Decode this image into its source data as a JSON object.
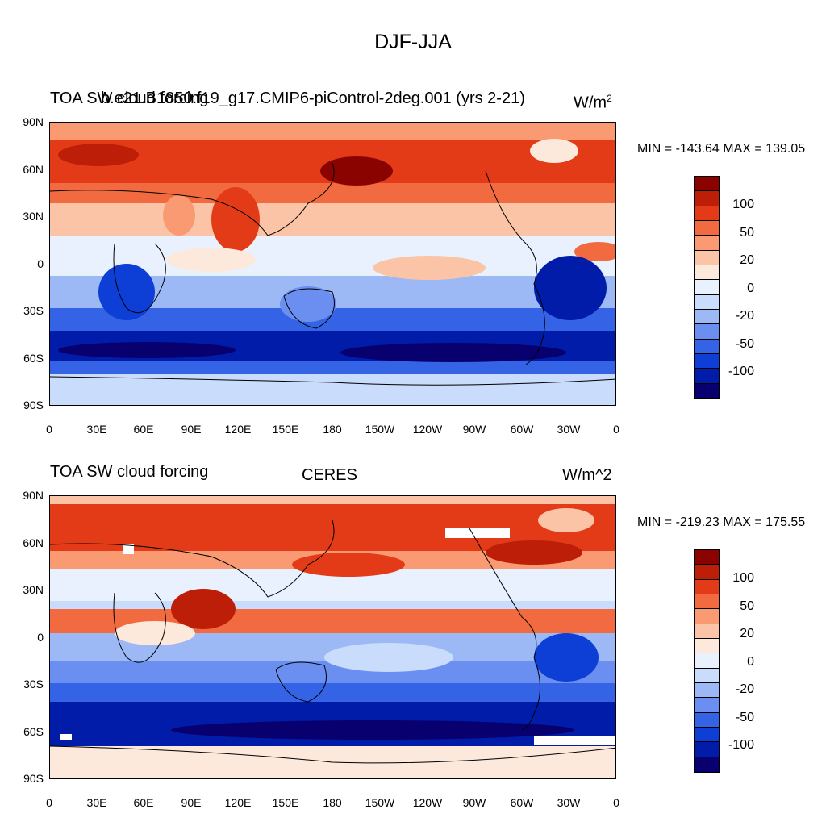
{
  "figure_title": "DJF-JJA",
  "colors": {
    "levels": [
      "#08006e",
      "#001ca8",
      "#0d3ed6",
      "#3563e6",
      "#6a8ff0",
      "#9cb9f5",
      "#c9dcfb",
      "#e8f1fd",
      "#fde8dc",
      "#fcc4a6",
      "#f99a72",
      "#f26a3f",
      "#e33b18",
      "#bd1e08",
      "#8a0300"
    ]
  },
  "panels": [
    {
      "left_title": "TOA SW cloud forcing",
      "center_title": "b.e21.B1850.f19_g17.CMIP6-piControl-2deg.001 (yrs 2-21)",
      "units": "W/m",
      "units_sup": "2",
      "min_max": "MIN = -143.64 MAX = 139.05",
      "lat_labels": [
        "90N",
        "60N",
        "30N",
        "0",
        "30S",
        "60S",
        "90S"
      ],
      "lon_labels": [
        "0",
        "30E",
        "60E",
        "90E",
        "120E",
        "150E",
        "180",
        "150W",
        "120W",
        "90W",
        "60W",
        "30W",
        "0"
      ],
      "colorbar_labels": [
        "100",
        "50",
        "20",
        "0",
        "-20",
        "-50",
        "-100"
      ]
    },
    {
      "left_title": "TOA SW cloud forcing",
      "center_title": "CERES",
      "units": "W/m^2",
      "units_sup": "",
      "min_max": "MIN = -219.23 MAX = 175.55",
      "lat_labels": [
        "90N",
        "60N",
        "30N",
        "0",
        "30S",
        "60S",
        "90S"
      ],
      "lon_labels": [
        "0",
        "30E",
        "60E",
        "90E",
        "120E",
        "150E",
        "180",
        "150W",
        "120W",
        "90W",
        "60W",
        "30W",
        "0"
      ],
      "colorbar_labels": [
        "100",
        "50",
        "20",
        "0",
        "-20",
        "-50",
        "-100"
      ]
    }
  ]
}
